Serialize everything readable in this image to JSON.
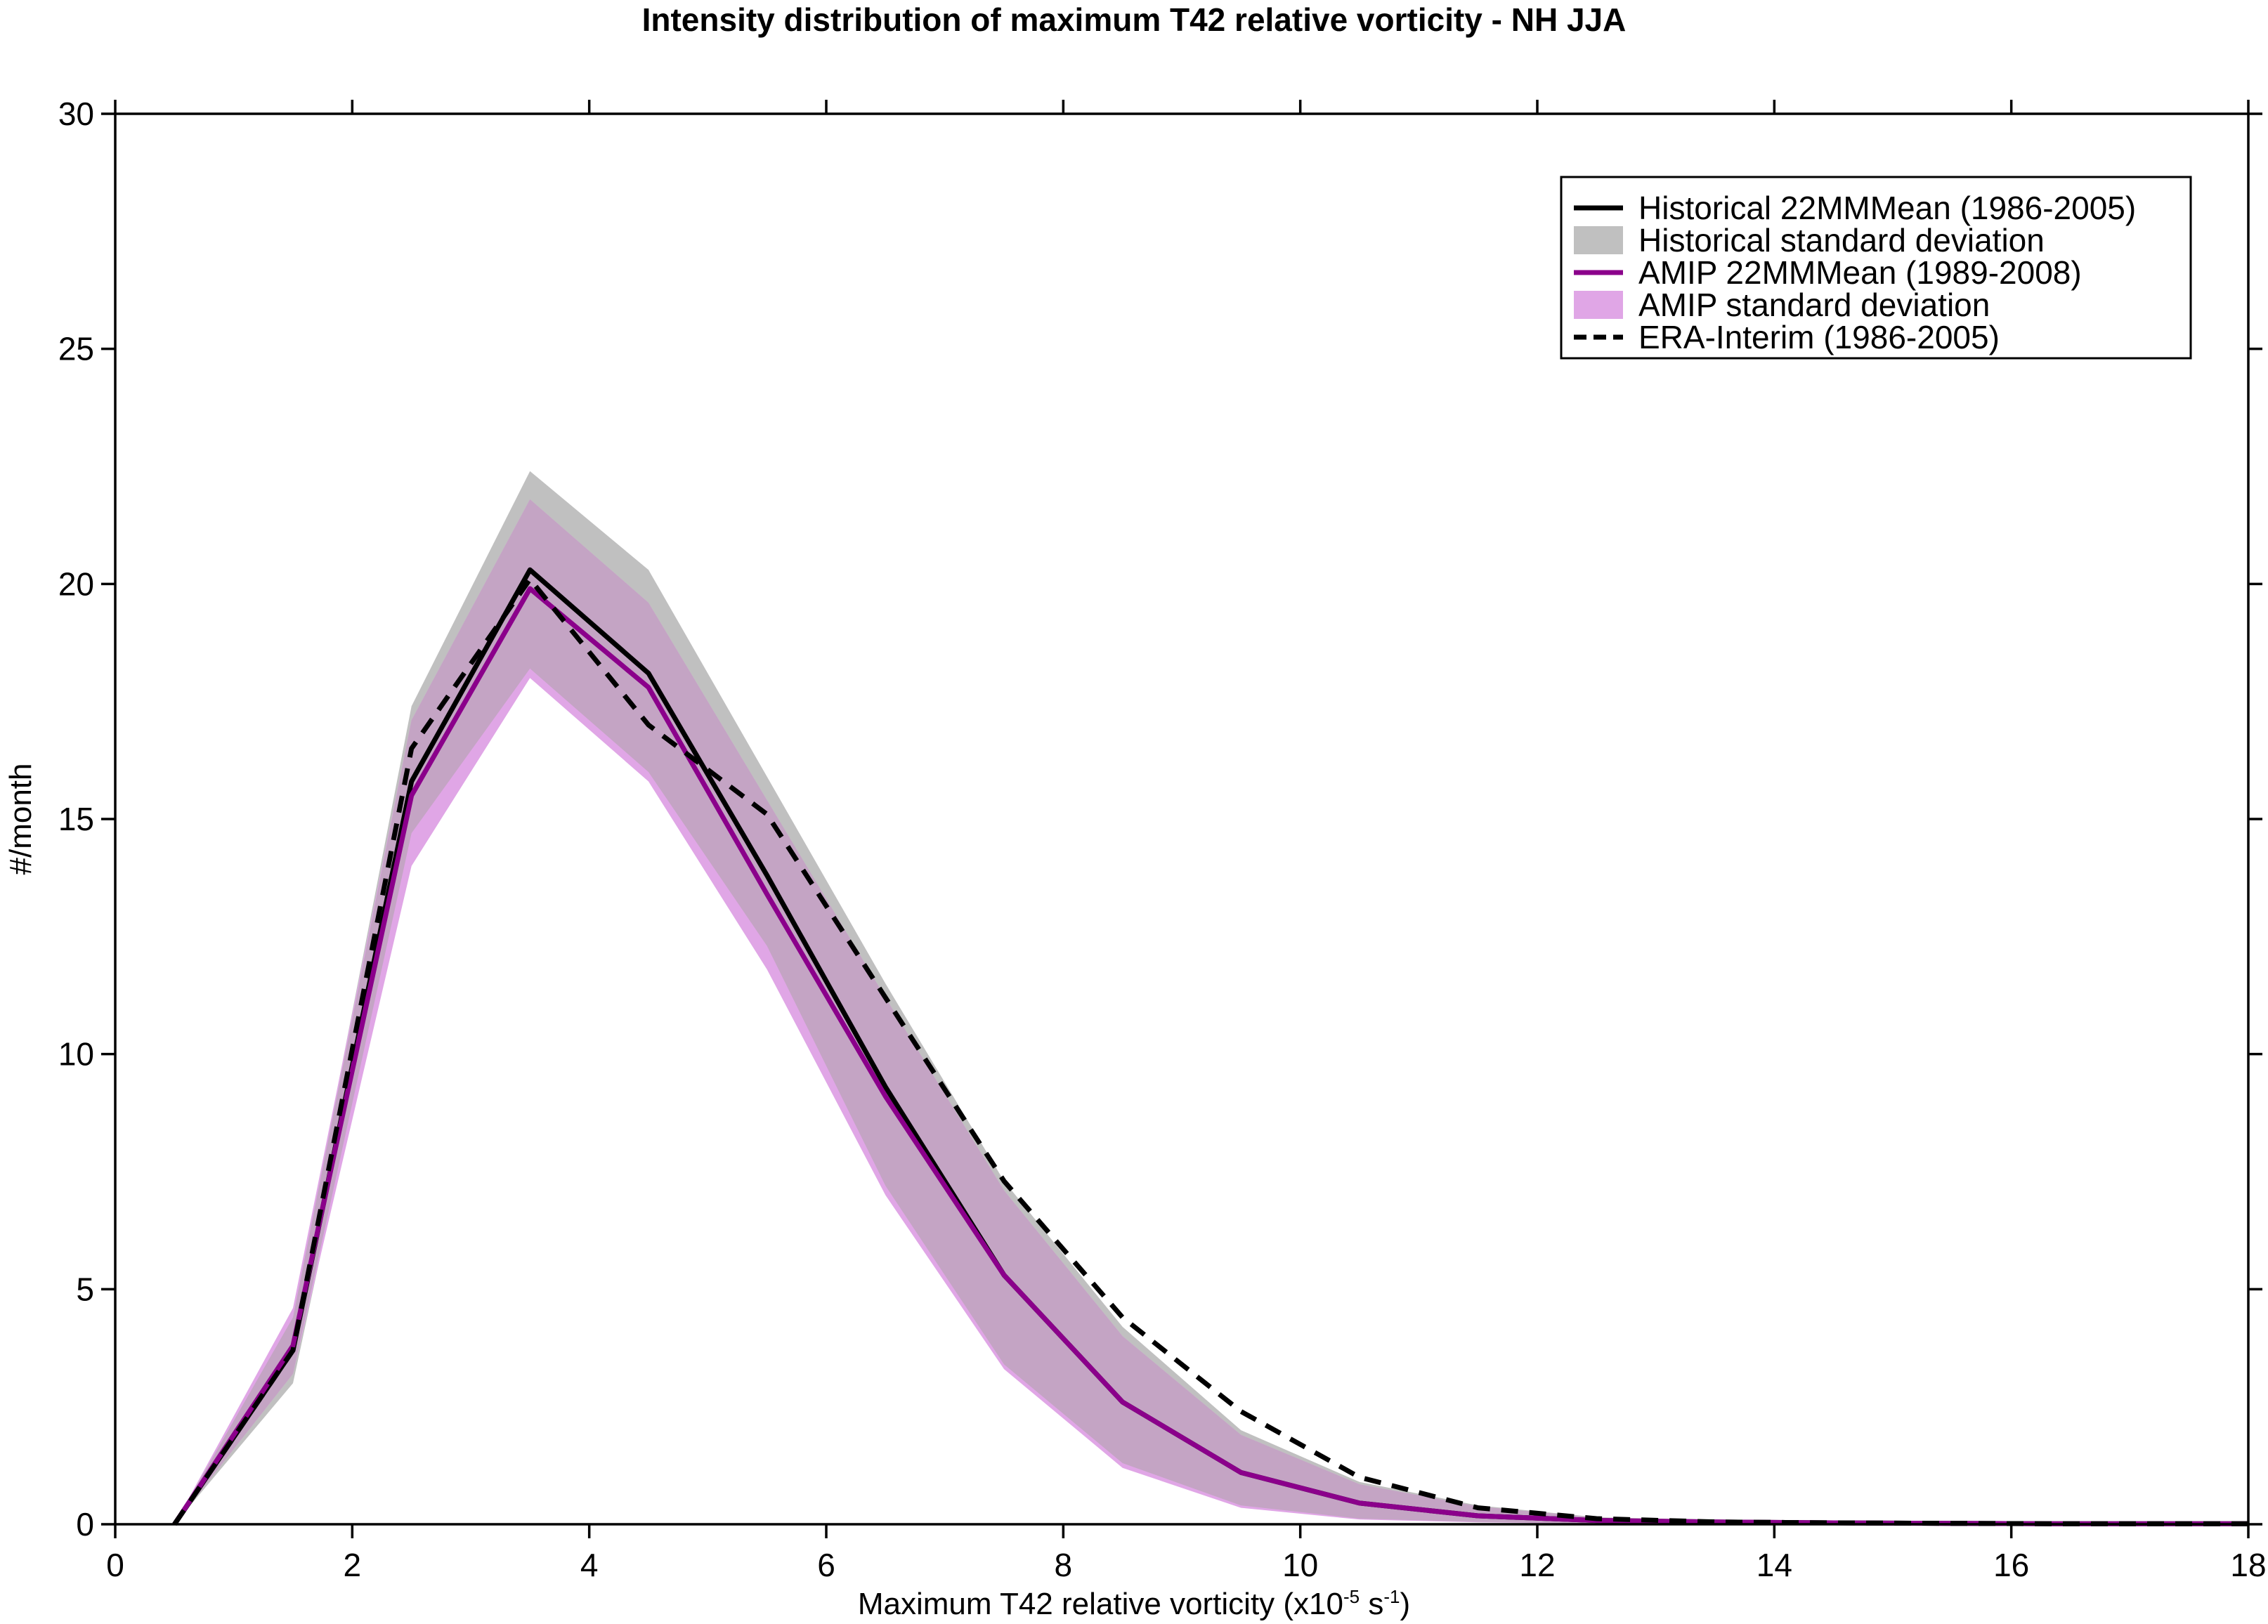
{
  "chart_data": {
    "type": "line",
    "title": "Intensity distribution of maximum T42 relative vorticity - NH JJA",
    "xlabel": {
      "main": "Maximum T42 relative vorticity (x10",
      "exp1": "-5",
      "unit": " s",
      "exp2": "-1",
      "close": ")"
    },
    "ylabel": "#/month",
    "xlim": [
      0,
      18
    ],
    "ylim": [
      0,
      30
    ],
    "xticks": [
      0,
      2,
      4,
      6,
      8,
      10,
      12,
      14,
      16,
      18
    ],
    "yticks": [
      0,
      5,
      10,
      15,
      20,
      25,
      30
    ],
    "legend_position": "top-right",
    "x": [
      0.5,
      1.5,
      2.5,
      3.5,
      4.5,
      5.5,
      6.5,
      7.5,
      8.5,
      9.5,
      10.5,
      11.5,
      12.5,
      13.5,
      14.5,
      15.5,
      16.5,
      17.5,
      18
    ],
    "series": [
      {
        "name": "Historical 22MMMean (1986-2005)",
        "style": "solid",
        "color": "#000000",
        "values": [
          0,
          3.7,
          15.8,
          20.3,
          18.1,
          13.8,
          9.3,
          5.3,
          2.6,
          1.1,
          0.45,
          0.18,
          0.08,
          0.05,
          0.03,
          0.02,
          0.01,
          0.01,
          0.01
        ]
      },
      {
        "name": "Historical standard deviation",
        "style": "band",
        "color": "#c0c0c0",
        "lower": [
          0,
          3.0,
          14.7,
          18.2,
          16.0,
          12.3,
          7.2,
          3.4,
          1.3,
          0.4,
          0.12,
          0.05,
          0.02,
          0.01,
          0.0,
          0.0,
          0.0,
          0.0,
          0.0
        ],
        "upper": [
          0,
          4.4,
          17.4,
          22.4,
          20.3,
          15.9,
          11.5,
          7.3,
          4.2,
          2.0,
          0.9,
          0.4,
          0.15,
          0.08,
          0.05,
          0.03,
          0.02,
          0.02,
          0.02
        ]
      },
      {
        "name": "AMIP 22MMMean (1989-2008)",
        "style": "solid",
        "color": "#8b008b",
        "values": [
          0,
          3.8,
          15.5,
          19.9,
          17.8,
          13.4,
          9.1,
          5.3,
          2.6,
          1.1,
          0.45,
          0.18,
          0.08,
          0.05,
          0.03,
          0.02,
          0.01,
          0.01,
          0.01
        ]
      },
      {
        "name": "AMIP standard deviation",
        "style": "band",
        "color": "#e0a6e6",
        "lower": [
          0,
          3.2,
          14.0,
          18.0,
          15.8,
          11.8,
          7.0,
          3.3,
          1.2,
          0.35,
          0.1,
          0.04,
          0.02,
          0.01,
          0.0,
          0.0,
          0.0,
          0.0,
          0.0
        ],
        "upper": [
          0,
          4.6,
          17.1,
          21.8,
          19.6,
          15.4,
          11.2,
          7.1,
          4.0,
          1.9,
          0.85,
          0.38,
          0.14,
          0.07,
          0.05,
          0.03,
          0.02,
          0.02,
          0.02
        ]
      },
      {
        "name": "ERA-Interim (1986-2005)",
        "style": "dashed",
        "color": "#000000",
        "values": [
          0,
          3.7,
          16.5,
          20.1,
          17.0,
          15.1,
          11.2,
          7.3,
          4.4,
          2.4,
          1.0,
          0.35,
          0.12,
          0.05,
          0.03,
          0.02,
          0.01,
          0.01,
          0.01
        ]
      }
    ],
    "overlap_color": "#c4a4c4"
  }
}
